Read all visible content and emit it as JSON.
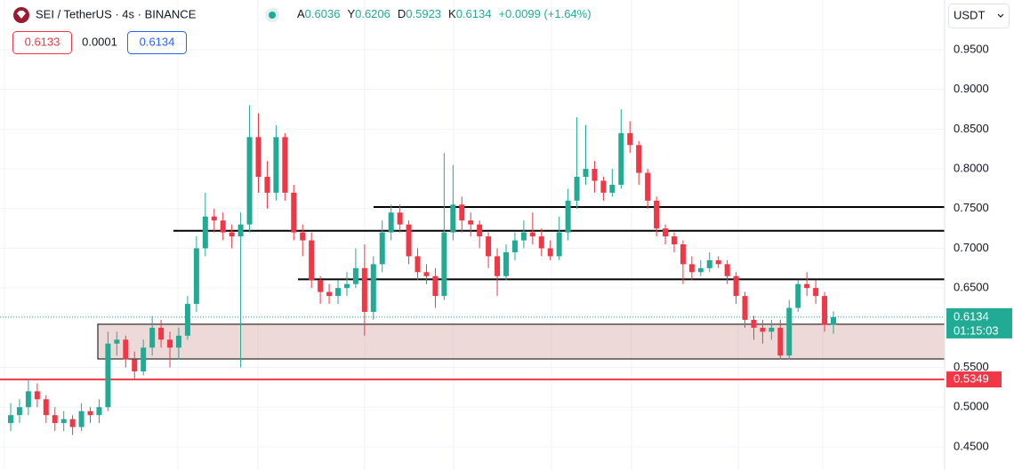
{
  "chart_data": {
    "type": "candlestick",
    "title": "SEI / TetherUS · 4s · BINANCE",
    "ohlc_labels": [
      "A",
      "Y",
      "D",
      "K"
    ],
    "change": "+0.0099 (+1.64%)",
    "bid": 0.6133,
    "spread": 0.0001,
    "ask": 0.6134,
    "currency": "USDT",
    "countdown": "01:15:03",
    "up_color": "#22ab94",
    "down_color": "#f23645",
    "ylim": [
      0.4209,
      1.0126
    ],
    "yticks": [
      {
        "value": 0.95,
        "label": "0.9500"
      },
      {
        "value": 0.9,
        "label": "0.9000"
      },
      {
        "value": 0.85,
        "label": "0.8500"
      },
      {
        "value": 0.8,
        "label": "0.8000"
      },
      {
        "value": 0.75,
        "label": "0.7500"
      },
      {
        "value": 0.7,
        "label": "0.7000"
      },
      {
        "value": 0.65,
        "label": "0.6500"
      },
      {
        "value": 0.55,
        "label": "0.5500"
      },
      {
        "value": 0.5,
        "label": "0.5000"
      },
      {
        "value": 0.45,
        "label": "0.4500"
      }
    ],
    "grid": true,
    "levels": [
      0.752,
      0.722,
      0.661
    ],
    "zone": [
      0.6044,
      0.5607
    ],
    "alert_line": 0.5349,
    "candles": [
      [
        0.48,
        0.505,
        0.47,
        0.49
      ],
      [
        0.49,
        0.51,
        0.48,
        0.5
      ],
      [
        0.5,
        0.535,
        0.49,
        0.52
      ],
      [
        0.52,
        0.53,
        0.5,
        0.51
      ],
      [
        0.51,
        0.515,
        0.48,
        0.49
      ],
      [
        0.49,
        0.5,
        0.47,
        0.48
      ],
      [
        0.48,
        0.495,
        0.47,
        0.485
      ],
      [
        0.485,
        0.49,
        0.465,
        0.475
      ],
      [
        0.475,
        0.505,
        0.47,
        0.495
      ],
      [
        0.495,
        0.5,
        0.48,
        0.49
      ],
      [
        0.49,
        0.51,
        0.48,
        0.5
      ],
      [
        0.5,
        0.595,
        0.495,
        0.58
      ],
      [
        0.58,
        0.595,
        0.565,
        0.585
      ],
      [
        0.585,
        0.59,
        0.55,
        0.56
      ],
      [
        0.56,
        0.57,
        0.535,
        0.545
      ],
      [
        0.545,
        0.585,
        0.54,
        0.575
      ],
      [
        0.575,
        0.615,
        0.565,
        0.6
      ],
      [
        0.6,
        0.61,
        0.575,
        0.585
      ],
      [
        0.585,
        0.595,
        0.55,
        0.575
      ],
      [
        0.575,
        0.6,
        0.56,
        0.59
      ],
      [
        0.59,
        0.64,
        0.585,
        0.63
      ],
      [
        0.63,
        0.715,
        0.62,
        0.7
      ],
      [
        0.7,
        0.77,
        0.69,
        0.74
      ],
      [
        0.74,
        0.75,
        0.72,
        0.735
      ],
      [
        0.735,
        0.745,
        0.71,
        0.72
      ],
      [
        0.72,
        0.73,
        0.7,
        0.715
      ],
      [
        0.715,
        0.745,
        0.55,
        0.73
      ],
      [
        0.73,
        0.88,
        0.72,
        0.84
      ],
      [
        0.84,
        0.87,
        0.77,
        0.79
      ],
      [
        0.79,
        0.81,
        0.75,
        0.77
      ],
      [
        0.77,
        0.855,
        0.76,
        0.84
      ],
      [
        0.84,
        0.845,
        0.76,
        0.77
      ],
      [
        0.77,
        0.78,
        0.71,
        0.72
      ],
      [
        0.72,
        0.73,
        0.69,
        0.71
      ],
      [
        0.71,
        0.72,
        0.65,
        0.66
      ],
      [
        0.66,
        0.665,
        0.63,
        0.645
      ],
      [
        0.645,
        0.655,
        0.63,
        0.64
      ],
      [
        0.64,
        0.66,
        0.63,
        0.65
      ],
      [
        0.65,
        0.67,
        0.64,
        0.655
      ],
      [
        0.655,
        0.7,
        0.65,
        0.675
      ],
      [
        0.675,
        0.705,
        0.59,
        0.62
      ],
      [
        0.62,
        0.69,
        0.61,
        0.68
      ],
      [
        0.68,
        0.735,
        0.67,
        0.72
      ],
      [
        0.72,
        0.755,
        0.71,
        0.745
      ],
      [
        0.745,
        0.755,
        0.72,
        0.73
      ],
      [
        0.73,
        0.735,
        0.68,
        0.69
      ],
      [
        0.69,
        0.7,
        0.66,
        0.67
      ],
      [
        0.67,
        0.68,
        0.655,
        0.665
      ],
      [
        0.665,
        0.675,
        0.625,
        0.64
      ],
      [
        0.64,
        0.82,
        0.635,
        0.72
      ],
      [
        0.72,
        0.805,
        0.71,
        0.755
      ],
      [
        0.755,
        0.765,
        0.72,
        0.735
      ],
      [
        0.735,
        0.745,
        0.715,
        0.73
      ],
      [
        0.73,
        0.735,
        0.7,
        0.715
      ],
      [
        0.715,
        0.72,
        0.675,
        0.69
      ],
      [
        0.69,
        0.7,
        0.64,
        0.665
      ],
      [
        0.665,
        0.705,
        0.66,
        0.695
      ],
      [
        0.695,
        0.72,
        0.685,
        0.71
      ],
      [
        0.71,
        0.735,
        0.7,
        0.72
      ],
      [
        0.72,
        0.745,
        0.705,
        0.715
      ],
      [
        0.715,
        0.725,
        0.69,
        0.7
      ],
      [
        0.7,
        0.71,
        0.685,
        0.69
      ],
      [
        0.69,
        0.74,
        0.685,
        0.72
      ],
      [
        0.72,
        0.775,
        0.71,
        0.76
      ],
      [
        0.76,
        0.865,
        0.75,
        0.79
      ],
      [
        0.79,
        0.855,
        0.78,
        0.8
      ],
      [
        0.8,
        0.81,
        0.77,
        0.785
      ],
      [
        0.785,
        0.79,
        0.76,
        0.77
      ],
      [
        0.77,
        0.8,
        0.765,
        0.78
      ],
      [
        0.78,
        0.875,
        0.775,
        0.845
      ],
      [
        0.845,
        0.86,
        0.82,
        0.83
      ],
      [
        0.83,
        0.835,
        0.78,
        0.795
      ],
      [
        0.795,
        0.8,
        0.75,
        0.76
      ],
      [
        0.76,
        0.765,
        0.715,
        0.725
      ],
      [
        0.725,
        0.73,
        0.705,
        0.715
      ],
      [
        0.715,
        0.72,
        0.695,
        0.705
      ],
      [
        0.705,
        0.71,
        0.655,
        0.68
      ],
      [
        0.68,
        0.69,
        0.66,
        0.67
      ],
      [
        0.67,
        0.685,
        0.665,
        0.675
      ],
      [
        0.675,
        0.695,
        0.67,
        0.685
      ],
      [
        0.685,
        0.69,
        0.675,
        0.68
      ],
      [
        0.68,
        0.685,
        0.655,
        0.665
      ],
      [
        0.665,
        0.67,
        0.63,
        0.64
      ],
      [
        0.64,
        0.645,
        0.6,
        0.61
      ],
      [
        0.61,
        0.615,
        0.585,
        0.6
      ],
      [
        0.6,
        0.61,
        0.58,
        0.595
      ],
      [
        0.595,
        0.61,
        0.585,
        0.6
      ],
      [
        0.6,
        0.61,
        0.56,
        0.565
      ],
      [
        0.565,
        0.635,
        0.56,
        0.625
      ],
      [
        0.625,
        0.66,
        0.62,
        0.655
      ],
      [
        0.655,
        0.67,
        0.64,
        0.65
      ],
      [
        0.65,
        0.66,
        0.63,
        0.64
      ],
      [
        0.64,
        0.645,
        0.595,
        0.6036
      ],
      [
        0.6036,
        0.6206,
        0.5923,
        0.6134
      ]
    ]
  }
}
